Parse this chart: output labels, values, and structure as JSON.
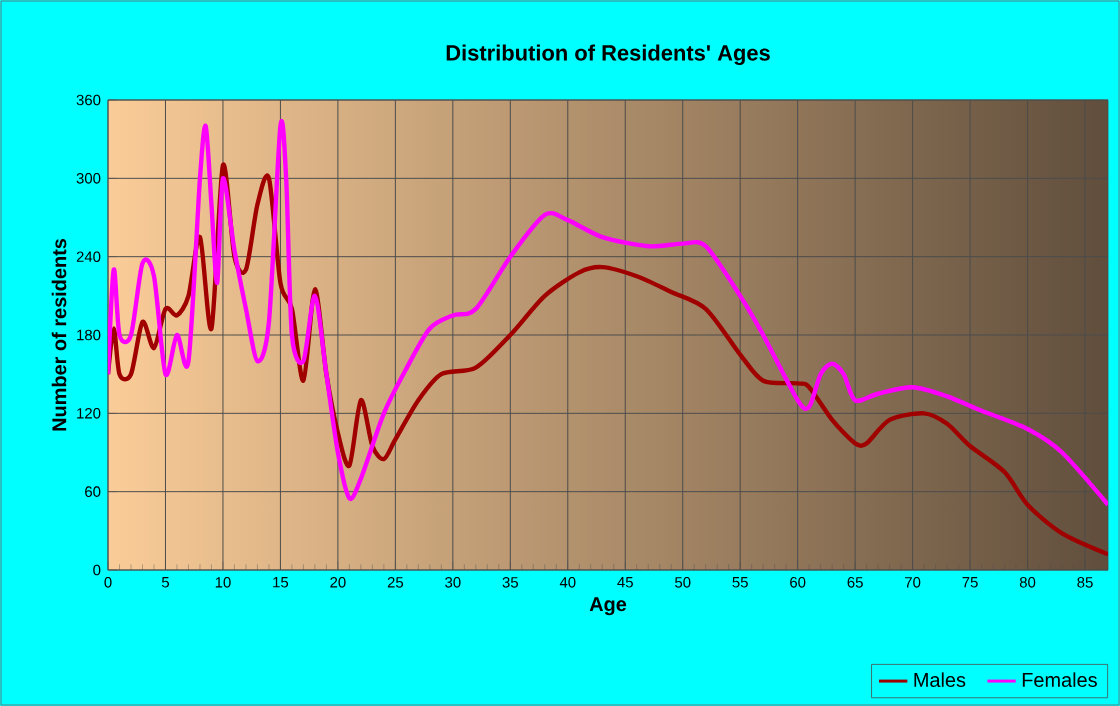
{
  "chart_data": {
    "type": "line",
    "title": "Distribution of Residents' Ages",
    "xlabel": "Age",
    "ylabel": "Number of residents",
    "xlim": [
      0,
      87
    ],
    "xticks": [
      0,
      5,
      10,
      15,
      20,
      25,
      30,
      35,
      40,
      45,
      50,
      55,
      60,
      65,
      70,
      75,
      80,
      85
    ],
    "ylim": [
      0,
      360
    ],
    "yticks": [
      0,
      60,
      120,
      180,
      240,
      300,
      360
    ],
    "grid": true,
    "legend": "bottom right",
    "marker": "none",
    "line_style": "solid",
    "series": [
      {
        "name": "Males",
        "color": "#a00000",
        "x": [
          0,
          0.5,
          1,
          2,
          3,
          4,
          5,
          6,
          7,
          8,
          9,
          10,
          11,
          12,
          13,
          14,
          15,
          16,
          17,
          18,
          19,
          20,
          21,
          22,
          23,
          24,
          25,
          27,
          29,
          32,
          35,
          38,
          41,
          43,
          46,
          49,
          52,
          55,
          57,
          60,
          61,
          63,
          65,
          66,
          68,
          71,
          73,
          75,
          78,
          80,
          83,
          87
        ],
        "values": [
          150,
          185,
          150,
          150,
          190,
          170,
          200,
          195,
          210,
          255,
          185,
          310,
          240,
          230,
          280,
          300,
          220,
          200,
          145,
          215,
          150,
          105,
          80,
          130,
          95,
          85,
          100,
          130,
          150,
          155,
          180,
          210,
          228,
          232,
          225,
          213,
          200,
          165,
          145,
          143,
          140,
          115,
          97,
          97,
          115,
          120,
          112,
          95,
          75,
          50,
          28,
          12
        ]
      },
      {
        "name": "Females",
        "color": "#ff00ff",
        "x": [
          0,
          0.5,
          1,
          2,
          3,
          4,
          5,
          6,
          7,
          8,
          8.5,
          9,
          9.5,
          10,
          11,
          12,
          13,
          14,
          15,
          15.5,
          16,
          17,
          18,
          19,
          20,
          21,
          22,
          24,
          26,
          28,
          30,
          32,
          35,
          38,
          40,
          43,
          47,
          50,
          52,
          55,
          57,
          60,
          61,
          62,
          63,
          64,
          65,
          67,
          70,
          73,
          76,
          80,
          83,
          87
        ],
        "values": [
          150,
          230,
          180,
          180,
          235,
          225,
          150,
          180,
          160,
          300,
          340,
          280,
          220,
          300,
          245,
          200,
          160,
          190,
          340,
          300,
          180,
          160,
          210,
          150,
          90,
          55,
          70,
          120,
          155,
          185,
          195,
          200,
          240,
          272,
          268,
          255,
          248,
          250,
          248,
          210,
          180,
          130,
          125,
          150,
          158,
          150,
          130,
          135,
          140,
          133,
          122,
          108,
          90,
          50
        ]
      }
    ]
  }
}
